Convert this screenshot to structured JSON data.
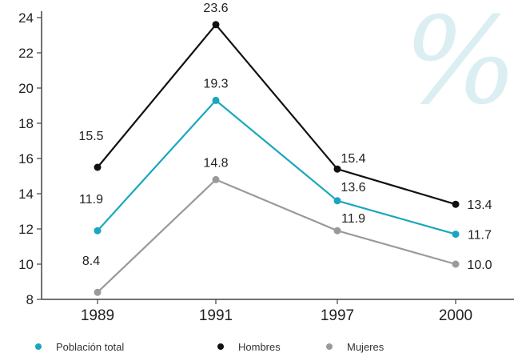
{
  "chart_data": {
    "type": "line",
    "categories": [
      "1989",
      "1991",
      "1997",
      "2000"
    ],
    "ylim": [
      8,
      24
    ],
    "yticks": [
      8,
      10,
      12,
      14,
      16,
      18,
      20,
      22,
      24
    ],
    "series": [
      {
        "name": "Hombres",
        "values": [
          15.5,
          23.6,
          15.4,
          13.4
        ],
        "labels": [
          "15.5",
          "23.6",
          "15.4",
          "13.4"
        ],
        "color": "#111111"
      },
      {
        "name": "Población total",
        "values": [
          11.9,
          19.3,
          13.6,
          11.7
        ],
        "labels": [
          "11.9",
          "19.3",
          "13.6",
          "11.7"
        ],
        "color": "#1aa7bd"
      },
      {
        "name": "Mujeres",
        "values": [
          8.4,
          14.8,
          11.9,
          10.0
        ],
        "labels": [
          "8.4",
          "14.8",
          "11.9",
          "10.0"
        ],
        "color": "#9a9a9a"
      }
    ],
    "legend": {
      "placement": "bottom"
    },
    "grid": false
  },
  "watermark": "%"
}
